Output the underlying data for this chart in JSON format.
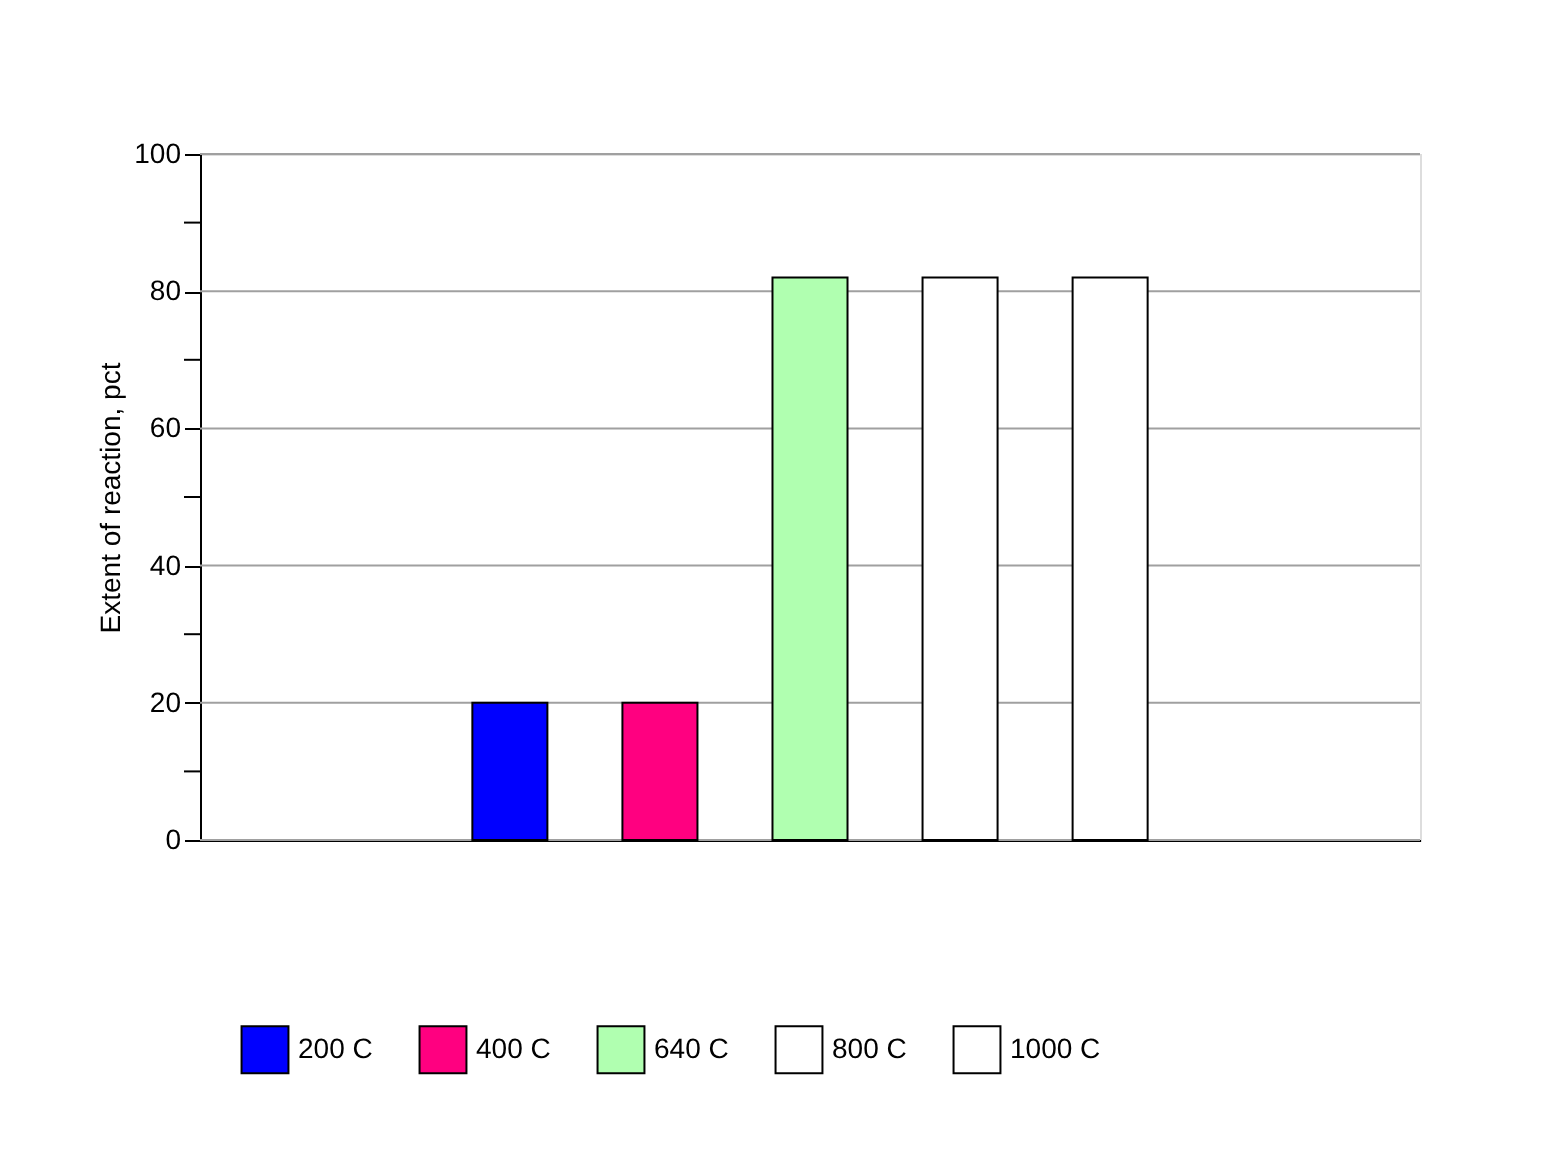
{
  "chart_data": {
    "type": "bar",
    "ylabel": "Extent of reaction, pct",
    "categories": [
      null
    ],
    "series": [
      {
        "name": "200 C",
        "color": "#0000ff",
        "values": [
          20
        ]
      },
      {
        "name": "400 C",
        "color": "#ff0080",
        "values": [
          20
        ]
      },
      {
        "name": "640 C",
        "color": "#b0ffb0",
        "values": [
          82
        ]
      },
      {
        "name": "800 C",
        "color": "#ffffff",
        "values": [
          82
        ]
      },
      {
        "name": "1000 C",
        "color": "#ffffff",
        "values": [
          82
        ]
      }
    ],
    "ylim": [
      0,
      100
    ],
    "yticks": [
      0,
      {
        "value": 10,
        "label": null
      },
      20,
      {
        "value": 30,
        "label": null
      },
      40,
      {
        "value": 50,
        "label": null
      },
      60,
      {
        "value": 70,
        "label": null
      },
      80,
      {
        "value": 90,
        "label": null
      },
      100
    ],
    "grid": "y",
    "legend": "bottom"
  }
}
